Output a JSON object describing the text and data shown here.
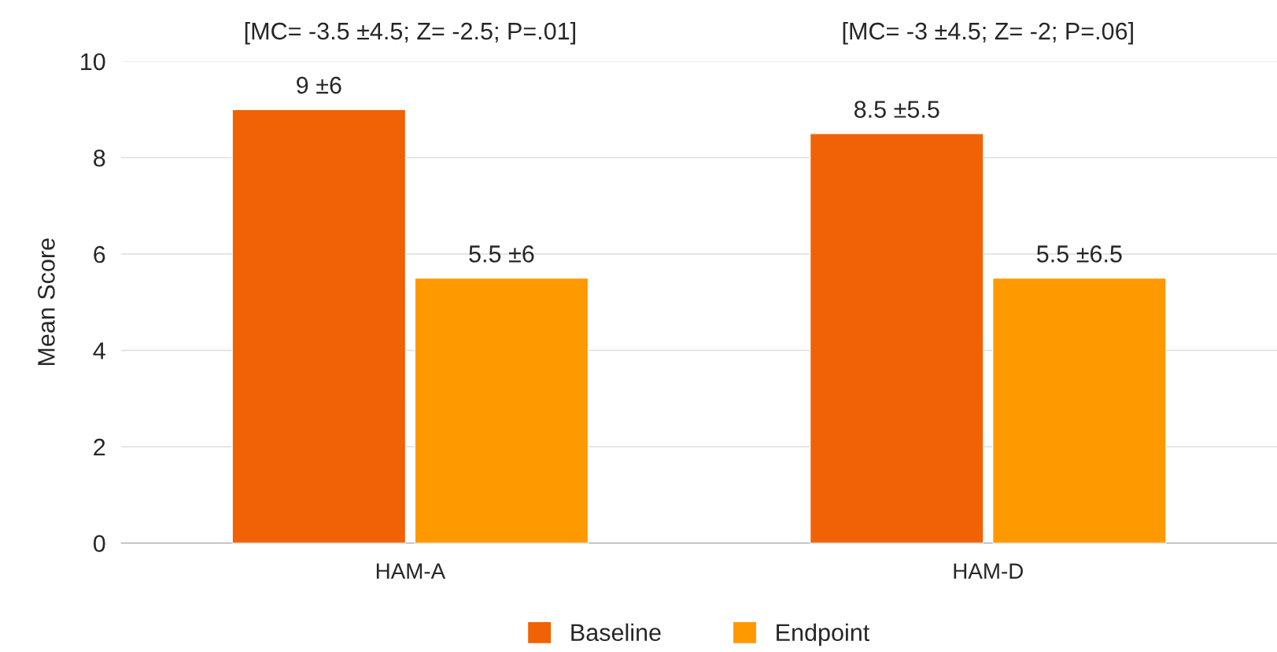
{
  "chart_data": {
    "type": "bar",
    "ylabel": "Mean Score",
    "categories": [
      "HAM-A",
      "HAM-D"
    ],
    "series": [
      {
        "name": "Baseline",
        "color": "#f06205",
        "values": [
          9,
          8.5
        ],
        "value_labels": [
          "9 ±6",
          "8.5 ±5.5"
        ]
      },
      {
        "name": "Endpoint",
        "color": "#ff9900",
        "values": [
          5.5,
          5.5
        ],
        "value_labels": [
          "5.5 ±6",
          "5.5 ±6.5"
        ]
      }
    ],
    "ylim": [
      0,
      10
    ],
    "yticks": [
      0,
      2,
      4,
      6,
      8,
      10
    ],
    "grid": "y",
    "legend": "bottom",
    "annotations": [
      "[MC= -3.5 ±4.5; Z= -2.5; P=.01]",
      "[MC= -3 ±4.5; Z= -2; P=.06]"
    ]
  }
}
